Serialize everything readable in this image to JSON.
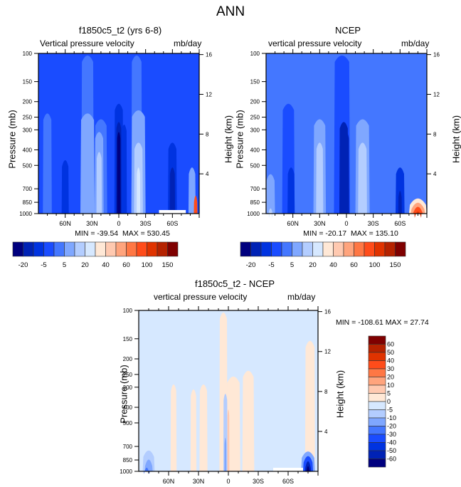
{
  "title": "ANN",
  "chart_data": [
    {
      "type": "heatmap",
      "id": "model",
      "title": "f1850c5_t2 (yrs 6-8)",
      "left_string": "Vertical pressure velocity",
      "right_string": "mb/day",
      "ylabel": "Pressure (mb)",
      "ylabel_right": "Height (km)",
      "y_ticks": [
        100,
        150,
        200,
        250,
        300,
        400,
        500,
        700,
        850,
        1000
      ],
      "y_right_ticks": [
        16,
        12,
        8,
        4
      ],
      "x_ticks": [
        "60N",
        "30N",
        "0",
        "30S",
        "60S"
      ],
      "x_tick_values": [
        60,
        30,
        0,
        -30,
        -60
      ],
      "xlim": [
        90,
        -90
      ],
      "ylim": [
        1000,
        100
      ],
      "min_label": "MIN = -39.54",
      "max_label": "MAX = 530.45",
      "min": -39.54,
      "max": 530.45,
      "colorbar": {
        "orientation": "horizontal",
        "labels": [
          "-20",
          "-5",
          "5",
          "20",
          "40",
          "60",
          "100",
          "150"
        ]
      }
    },
    {
      "type": "heatmap",
      "id": "obs",
      "title": "NCEP",
      "left_string": "vertical pressure velocity",
      "right_string": "mb/day",
      "ylabel": "Pressure (mb)",
      "ylabel_right": "Height (km)",
      "y_ticks": [
        100,
        150,
        200,
        250,
        300,
        400,
        500,
        700,
        850,
        1000
      ],
      "y_right_ticks": [
        16,
        12,
        8,
        4
      ],
      "x_ticks": [
        "60N",
        "30N",
        "0",
        "30S",
        "60S"
      ],
      "x_tick_values": [
        60,
        30,
        0,
        -30,
        -60
      ],
      "xlim": [
        90,
        -90
      ],
      "ylim": [
        1000,
        100
      ],
      "min_label": "MIN = -20.17",
      "max_label": "MAX = 135.10",
      "min": -20.17,
      "max": 135.1,
      "colorbar": {
        "orientation": "horizontal",
        "labels": [
          "-20",
          "-5",
          "5",
          "20",
          "40",
          "60",
          "100",
          "150"
        ]
      }
    },
    {
      "type": "heatmap",
      "id": "diff",
      "title": "f1850c5_t2 - NCEP",
      "left_string": "vertical pressure velocity",
      "right_string": "mb/day",
      "ylabel": "Pressure (mb)",
      "ylabel_right": "Height (km)",
      "y_ticks": [
        100,
        150,
        200,
        250,
        300,
        400,
        500,
        700,
        850,
        1000
      ],
      "y_right_ticks": [
        16,
        12,
        8,
        4
      ],
      "x_ticks": [
        "60N",
        "30N",
        "0",
        "30S",
        "60S"
      ],
      "x_tick_values": [
        60,
        30,
        0,
        -30,
        -60
      ],
      "xlim": [
        90,
        -90
      ],
      "ylim": [
        1000,
        100
      ],
      "minmax_label": "MIN = -108.61  MAX =  27.74",
      "min": -108.61,
      "max": 27.74,
      "colorbar": {
        "orientation": "vertical",
        "labels": [
          "60",
          "50",
          "40",
          "30",
          "20",
          "10",
          "5",
          "0",
          "-5",
          "-10",
          "-20",
          "-30",
          "-40",
          "-50",
          "-60"
        ]
      }
    }
  ],
  "palette_main": [
    "#00007f",
    "#0022b5",
    "#0033e0",
    "#1a4cff",
    "#4477ff",
    "#7fa7ff",
    "#b3cdff",
    "#d6e8ff",
    "#ffe8d6",
    "#ffc9b0",
    "#ffa47d",
    "#ff7744",
    "#ff4c1a",
    "#e03300",
    "#b52200",
    "#7f0000"
  ],
  "palette_diff": [
    "#7f0000",
    "#b52200",
    "#e03300",
    "#ff4c1a",
    "#ff7744",
    "#ffa47d",
    "#ffc9b0",
    "#ffe8d6",
    "#d6e8ff",
    "#b3cdff",
    "#7fa7ff",
    "#4477ff",
    "#1a4cff",
    "#0033e0",
    "#0022b5",
    "#00007f"
  ]
}
